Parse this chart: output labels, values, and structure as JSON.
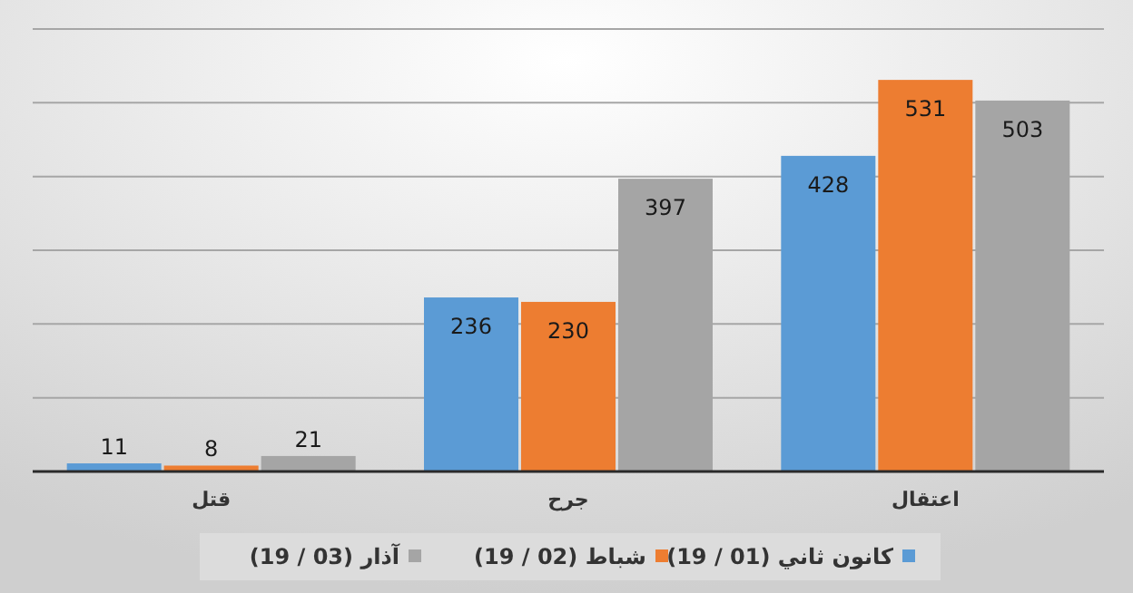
{
  "chart_data": {
    "type": "bar",
    "categories": [
      "قتل",
      "جرح",
      "اعتقال"
    ],
    "series": [
      {
        "name": "كانون ثاني (01 / 19)",
        "color": "#5b9bd5",
        "values": [
          11,
          236,
          428
        ]
      },
      {
        "name": "شباط (02 / 19)",
        "color": "#ed7d31",
        "values": [
          8,
          230,
          531
        ]
      },
      {
        "name": "آذار (03 / 19)",
        "color": "#a5a5a5",
        "values": [
          21,
          397,
          503
        ]
      }
    ],
    "ylim": [
      0,
      600
    ],
    "yticks": [
      {
        "value": 0,
        "label": null
      },
      {
        "value": 100,
        "label": null
      },
      {
        "value": 200,
        "label": null
      },
      {
        "value": 300,
        "label": null
      },
      {
        "value": 400,
        "label": null
      },
      {
        "value": 500,
        "label": null
      },
      {
        "value": 600,
        "label": null
      }
    ],
    "grid": "y",
    "data_labels": true,
    "legend": "bottom",
    "tick_labels": "x"
  }
}
